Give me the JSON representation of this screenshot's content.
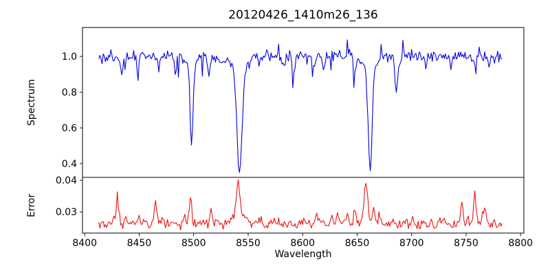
{
  "title": "20120426_1410m26_136",
  "chart_data": {
    "type": "line",
    "title": "20120426_1410m26_136",
    "xlabel": "Wavelength",
    "grid": false,
    "legend": "none",
    "xlim": [
      8398,
      8803
    ],
    "xticks": [
      {
        "v": 8400,
        "label": "8400"
      },
      {
        "v": 8450,
        "label": "8450"
      },
      {
        "v": 8500,
        "label": "8500"
      },
      {
        "v": 8550,
        "label": "8550"
      },
      {
        "v": 8600,
        "label": "8600"
      },
      {
        "v": 8650,
        "label": "8650"
      },
      {
        "v": 8700,
        "label": "8700"
      },
      {
        "v": 8750,
        "label": "8750"
      },
      {
        "v": 8800,
        "label": "8800"
      }
    ],
    "panels": [
      {
        "name": "spectrum",
        "ylabel": "Spectrum",
        "color": "#0000e0",
        "ylim": [
          0.323,
          1.162
        ],
        "yticks": [
          {
            "v": 0.4,
            "label": "0.4"
          },
          {
            "v": 0.6,
            "label": "0.6"
          },
          {
            "v": 0.8,
            "label": "0.8"
          },
          {
            "v": 1.0,
            "label": "1.0"
          }
        ],
        "x_start": 8413,
        "x_end": 8783,
        "x_step": 1,
        "baseline": 1.0,
        "seed": 20120426,
        "noise_band": 0.03,
        "spike_down_prob": 0.055,
        "spike_down": [
          0.02,
          0.1
        ],
        "spike_up_prob": 0.035,
        "spike_up": [
          0.02,
          0.07
        ],
        "noise_scales_with_flux": true,
        "clamp": [
          0.35,
          1.145
        ],
        "absorption_lines": [
          [
            8434,
            0.1,
            1.0
          ],
          [
            8448,
            0.08,
            0.9
          ],
          [
            8468,
            0.08,
            0.9
          ],
          [
            8483,
            0.09,
            0.9
          ],
          [
            8498,
            0.46,
            1.35
          ],
          [
            8498,
            0.04,
            4.0
          ],
          [
            8514,
            0.11,
            1.0
          ],
          [
            8525,
            0.06,
            0.9
          ],
          [
            8542,
            0.56,
            2.1
          ],
          [
            8542,
            0.1,
            6.5
          ],
          [
            8560,
            0.05,
            0.9
          ],
          [
            8583,
            0.07,
            0.9
          ],
          [
            8592,
            0.09,
            0.9
          ],
          [
            8611,
            0.08,
            0.9
          ],
          [
            8619,
            0.07,
            0.9
          ],
          [
            8648,
            0.1,
            1.0
          ],
          [
            8662,
            0.57,
            1.7
          ],
          [
            8662,
            0.08,
            5.5
          ],
          [
            8686,
            0.19,
            1.2
          ],
          [
            8713,
            0.06,
            0.9
          ],
          [
            8736,
            0.07,
            0.9
          ],
          [
            8759,
            0.09,
            0.9
          ],
          [
            8771,
            0.06,
            0.9
          ]
        ],
        "key_absorption_minima": [
          {
            "wavelength": 8498,
            "flux": 0.49
          },
          {
            "wavelength": 8542,
            "flux": 0.36
          },
          {
            "wavelength": 8662,
            "flux": 0.37
          }
        ]
      },
      {
        "name": "error",
        "ylabel": "Error",
        "color": "#f01010",
        "ylim": [
          0.0233,
          0.0409
        ],
        "yticks": [
          {
            "v": 0.03,
            "label": "0.03"
          },
          {
            "v": 0.04,
            "label": "0.04"
          }
        ],
        "x_start": 8413,
        "x_end": 8783,
        "x_step": 1,
        "baseline": 0.0262,
        "seed": 426,
        "noise_band": 0.0016,
        "spike_down_prob": 0.02,
        "spike_down": [
          0.0003,
          0.0008
        ],
        "spike_up_prob": 0.05,
        "spike_up": [
          0.0004,
          0.0012
        ],
        "noise_scales_with_flux": false,
        "clamp": [
          0.0239,
          0.0402
        ],
        "peaks": [
          [
            8427,
            0.003,
            0.8
          ],
          [
            8430,
            0.0082,
            1.1
          ],
          [
            8437,
            0.0015,
            1.0
          ],
          [
            8450,
            0.003,
            1.1
          ],
          [
            8465,
            0.0068,
            1.2
          ],
          [
            8472,
            0.0018,
            1.0
          ],
          [
            8492,
            0.0022,
            1.2
          ],
          [
            8497,
            0.008,
            1.2
          ],
          [
            8516,
            0.0046,
            1.2
          ],
          [
            8521,
            0.0018,
            1.0
          ],
          [
            8536,
            0.0028,
            1.6
          ],
          [
            8541,
            0.0133,
            1.7
          ],
          [
            8547,
            0.003,
            1.6
          ],
          [
            8560,
            0.0015,
            1.2
          ],
          [
            8572,
            0.001,
            1.2
          ],
          [
            8601,
            0.001,
            1.5
          ],
          [
            8614,
            0.0012,
            1.2
          ],
          [
            8627,
            0.002,
            1.2
          ],
          [
            8632,
            0.003,
            1.0
          ],
          [
            8641,
            0.0032,
            1.2
          ],
          [
            8648,
            0.004,
            1.3
          ],
          [
            8658,
            0.013,
            1.7
          ],
          [
            8665,
            0.004,
            1.4
          ],
          [
            8671,
            0.0026,
            1.2
          ],
          [
            8684,
            0.0012,
            1.2
          ],
          [
            8700,
            0.001,
            1.2
          ],
          [
            8712,
            0.0012,
            1.2
          ],
          [
            8727,
            0.0018,
            1.4
          ],
          [
            8746,
            0.0063,
            1.1
          ],
          [
            8752,
            0.003,
            0.9
          ],
          [
            8758,
            0.0102,
            1.1
          ],
          [
            8767,
            0.004,
            2.0
          ],
          [
            8776,
            0.0012,
            1.0
          ]
        ],
        "key_error_peaks": [
          {
            "wavelength": 8430,
            "value": 0.0347
          },
          {
            "wavelength": 8465,
            "value": 0.0333
          },
          {
            "wavelength": 8497,
            "value": 0.035
          },
          {
            "wavelength": 8516,
            "value": 0.031
          },
          {
            "wavelength": 8541,
            "value": 0.0402
          },
          {
            "wavelength": 8658,
            "value": 0.0393
          },
          {
            "wavelength": 8746,
            "value": 0.0335
          },
          {
            "wavelength": 8758,
            "value": 0.0372
          },
          {
            "wavelength": 8767,
            "value": 0.0307
          }
        ]
      }
    ]
  }
}
